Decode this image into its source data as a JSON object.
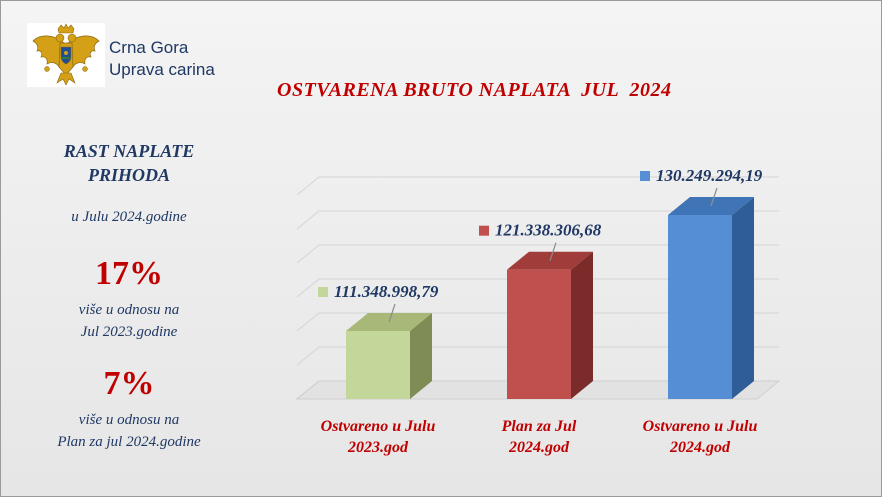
{
  "header": {
    "org_line1": "Crna Gora",
    "org_line2": "Uprava carina",
    "logo_icon": "montenegro-coat-of-arms-icon"
  },
  "left_panel": {
    "heading_line1": "RAST NAPLATE",
    "heading_line2": "PRIHODA",
    "subheading": "u  Julu 2024.godine",
    "stat1": {
      "value": "17%",
      "desc_line1": "više u odnosu na",
      "desc_line2": "Jul 2023.godine"
    },
    "stat2": {
      "value": "7%",
      "desc_line1": "više u odnosu na",
      "desc_line2": "Plan za jul 2024.godine"
    }
  },
  "chart_data": {
    "type": "bar",
    "title": "OSTVARENA BRUTO NAPLATA  JUL  2024",
    "categories": [
      [
        "Ostvareno u Julu",
        "2023.god"
      ],
      [
        "Plan za Jul",
        "2024.god"
      ],
      [
        "Ostvareno u Julu",
        "2024.god"
      ]
    ],
    "values": [
      111348998.79,
      121338306.68,
      130249294.19
    ],
    "data_labels": [
      "111.348.998,79",
      "121.338.306,68",
      "130.249.294,19"
    ],
    "colors": [
      {
        "front": "#c4d79b",
        "side": "#7f8c56",
        "top": "#a7b878"
      },
      {
        "front": "#c0504d",
        "side": "#7b2c2a",
        "top": "#a03c39"
      },
      {
        "front": "#558ed5",
        "side": "#2e5d97",
        "top": "#3f74b6"
      }
    ],
    "style": "3d-bar",
    "grid": true,
    "legend": "none",
    "label_color": "#c00000",
    "data_label_color": "#1f3864"
  }
}
